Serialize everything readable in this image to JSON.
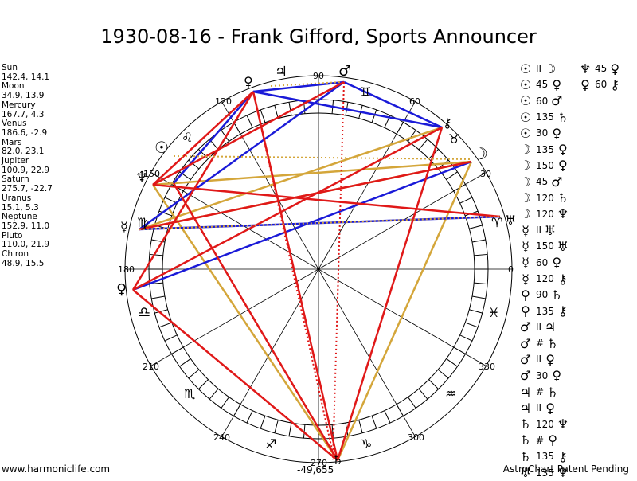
{
  "title": "1930-08-16 - Frank Gifford, Sports Announcer",
  "planets": [
    {
      "name": "Sun",
      "pos": "142.4, 14.1"
    },
    {
      "name": "Moon",
      "pos": "34.9, 13.9"
    },
    {
      "name": "Mercury",
      "pos": "167.7, 4.3"
    },
    {
      "name": "Venus",
      "pos": "186.6, -2.9"
    },
    {
      "name": "Mars",
      "pos": "82.0, 23.1"
    },
    {
      "name": "Jupiter",
      "pos": "100.9, 22.9"
    },
    {
      "name": "Saturn",
      "pos": "275.7, -22.7"
    },
    {
      "name": "Uranus",
      "pos": "15.1, 5.3"
    },
    {
      "name": "Neptune",
      "pos": "152.9, 11.0"
    },
    {
      "name": "Pluto",
      "pos": "110.0, 21.9"
    },
    {
      "name": "Chiron",
      "pos": "48.9, 15.5"
    }
  ],
  "degree_labels": [
    "0",
    "30",
    "60",
    "90",
    "120",
    "150",
    "180",
    "210",
    "240",
    "270",
    "300",
    "330"
  ],
  "aspects": [
    {
      "p1": "☉",
      "num": "II",
      "p2": "☽"
    },
    {
      "p1": "☉",
      "num": "45",
      "p2": "♀"
    },
    {
      "p1": "☉",
      "num": "60",
      "p2": "♂"
    },
    {
      "p1": "☉",
      "num": "135",
      "p2": "♄"
    },
    {
      "p1": "☉",
      "num": "30",
      "p2": "♀"
    },
    {
      "p1": "☽",
      "num": "135",
      "p2": "♀"
    },
    {
      "p1": "☽",
      "num": "150",
      "p2": "♀"
    },
    {
      "p1": "☽",
      "num": "45",
      "p2": "♂"
    },
    {
      "p1": "☽",
      "num": "120",
      "p2": "♄"
    },
    {
      "p1": "☽",
      "num": "120",
      "p2": "♆"
    },
    {
      "p1": "☿",
      "num": "II",
      "p2": "♅"
    },
    {
      "p1": "☿",
      "num": "150",
      "p2": "♅"
    },
    {
      "p1": "☿",
      "num": "60",
      "p2": "♀"
    },
    {
      "p1": "☿",
      "num": "120",
      "p2": "⚷"
    },
    {
      "p1": "♀",
      "num": "90",
      "p2": "♄"
    },
    {
      "p1": "♀",
      "num": "135",
      "p2": "⚷"
    },
    {
      "p1": "♂",
      "num": "II",
      "p2": "♃"
    },
    {
      "p1": "♂",
      "num": "#",
      "p2": "♄"
    },
    {
      "p1": "♂",
      "num": "II",
      "p2": "♀"
    },
    {
      "p1": "♂",
      "num": "30",
      "p2": "♀"
    },
    {
      "p1": "♃",
      "num": "#",
      "p2": "♄"
    },
    {
      "p1": "♃",
      "num": "II",
      "p2": "♀"
    },
    {
      "p1": "♄",
      "num": "120",
      "p2": "♆"
    },
    {
      "p1": "♄",
      "num": "#",
      "p2": "♀"
    },
    {
      "p1": "♄",
      "num": "135",
      "p2": "⚷"
    },
    {
      "p1": "♅",
      "num": "135",
      "p2": "♆"
    }
  ],
  "aspects2": [
    {
      "p1": "♆",
      "num": "45",
      "p2": "♀"
    },
    {
      "p1": "♀",
      "num": "60",
      "p2": "⚷"
    }
  ],
  "footer": {
    "left": "www.harmoniclife.com",
    "center": "-49,655",
    "right": "AstroChart Patent Pending"
  },
  "colors": {
    "red": "#e01818",
    "blue": "#1a1ad8",
    "gold": "#d4a63a"
  }
}
